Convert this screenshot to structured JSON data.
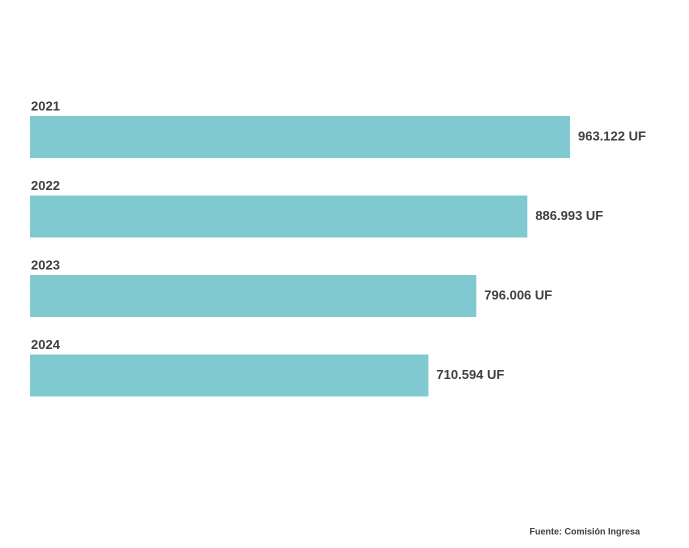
{
  "chart_data": {
    "type": "bar",
    "orientation": "horizontal",
    "categories": [
      "2021",
      "2022",
      "2023",
      "2024"
    ],
    "values": [
      963122,
      886993,
      796006,
      710594
    ],
    "value_labels": [
      "963.122 UF",
      "886.993 UF",
      "796.006 UF",
      "710.594 UF"
    ],
    "color": "#80c9d1",
    "source": "Fuente: Comisión Ingresa"
  }
}
